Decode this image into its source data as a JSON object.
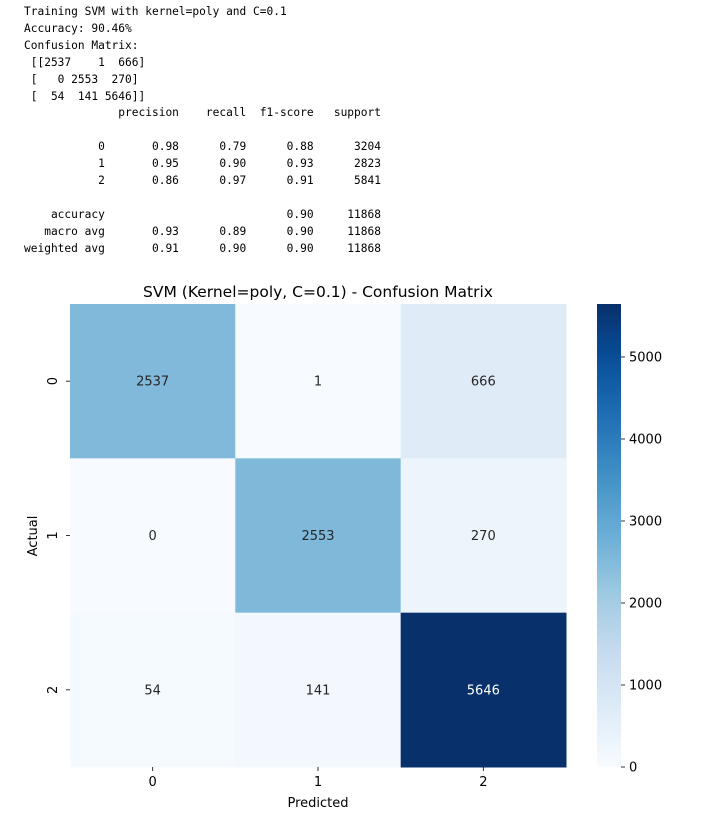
{
  "console": {
    "lines": [
      "Training SVM with kernel=poly and C=0.1",
      "Accuracy: 90.46%",
      "Confusion Matrix:",
      " [[2537    1  666]",
      " [   0 2553  270]",
      " [  54  141 5646]]",
      "              precision    recall  f1-score   support",
      "",
      "           0       0.98      0.79      0.88      3204",
      "           1       0.95      0.90      0.93      2823",
      "           2       0.86      0.97      0.91      5841",
      "",
      "    accuracy                           0.90     11868",
      "   macro avg       0.93      0.89      0.90     11868",
      "weighted avg       0.91      0.90      0.90     11868"
    ]
  },
  "chart_data": {
    "type": "heatmap",
    "title": "SVM (Kernel=poly, C=0.1) - Confusion Matrix",
    "xlabel": "Predicted",
    "ylabel": "Actual",
    "x_categories": [
      "0",
      "1",
      "2"
    ],
    "y_categories": [
      "0",
      "1",
      "2"
    ],
    "matrix": [
      [
        2537,
        1,
        666
      ],
      [
        0,
        2553,
        270
      ],
      [
        54,
        141,
        5646
      ]
    ],
    "colormap": "Blues",
    "vmin": 0,
    "vmax": 5646,
    "colorbar_ticks": [
      0,
      1000,
      2000,
      3000,
      4000,
      5000
    ],
    "low_text_color": "#262626",
    "high_text_color": "#ffffff"
  }
}
